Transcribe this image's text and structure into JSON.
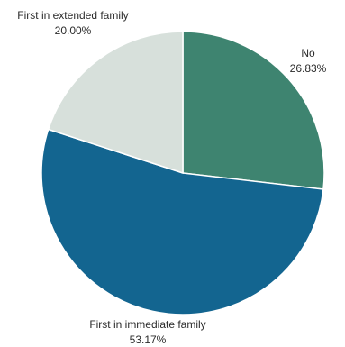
{
  "chart_data": {
    "type": "pie",
    "slices": [
      {
        "label": "No",
        "value": 26.83,
        "value_text": "26.83%",
        "color": "#3e8470"
      },
      {
        "label": "First in immediate family",
        "value": 53.17,
        "value_text": "53.17%",
        "color": "#136590"
      },
      {
        "label": "First in extended family",
        "value": 20.0,
        "value_text": "20.00%",
        "color": "#d7e0db"
      }
    ],
    "start": "12 o'clock",
    "direction": "clockwise",
    "legend": "none",
    "labels": "outside slices"
  }
}
